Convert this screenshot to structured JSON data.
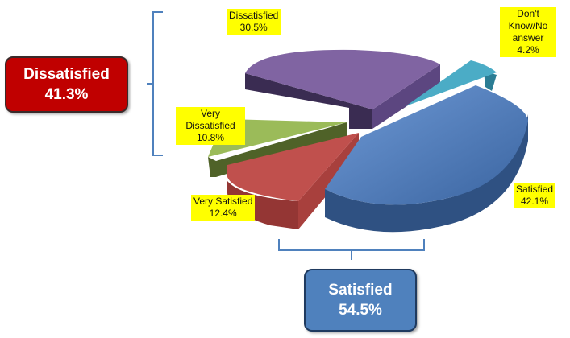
{
  "chart_data": {
    "type": "pie",
    "title": "",
    "slices": [
      {
        "label": "Satisfied",
        "value": 42.1,
        "value_label": "42.1%",
        "color": "#4f81bd"
      },
      {
        "label": "Very Satisfied",
        "value": 12.4,
        "value_label": "12.4%",
        "color": "#c0504d"
      },
      {
        "label": "Very Dissatisfied",
        "value": 10.8,
        "value_label": "10.8%",
        "color": "#9bbb59"
      },
      {
        "label": "Dissatisfied",
        "value": 30.5,
        "value_label": "30.5%",
        "color": "#8064a2"
      },
      {
        "label": "Don't Know/No answer",
        "value": 4.2,
        "value_label": "4.2%",
        "color": "#4bacc6"
      }
    ],
    "groups": [
      {
        "label": "Dissatisfied",
        "value_label": "41.3%",
        "color": "#c00000"
      },
      {
        "label": "Satisfied",
        "value_label": "54.5%",
        "color": "#4f81bd"
      }
    ]
  }
}
